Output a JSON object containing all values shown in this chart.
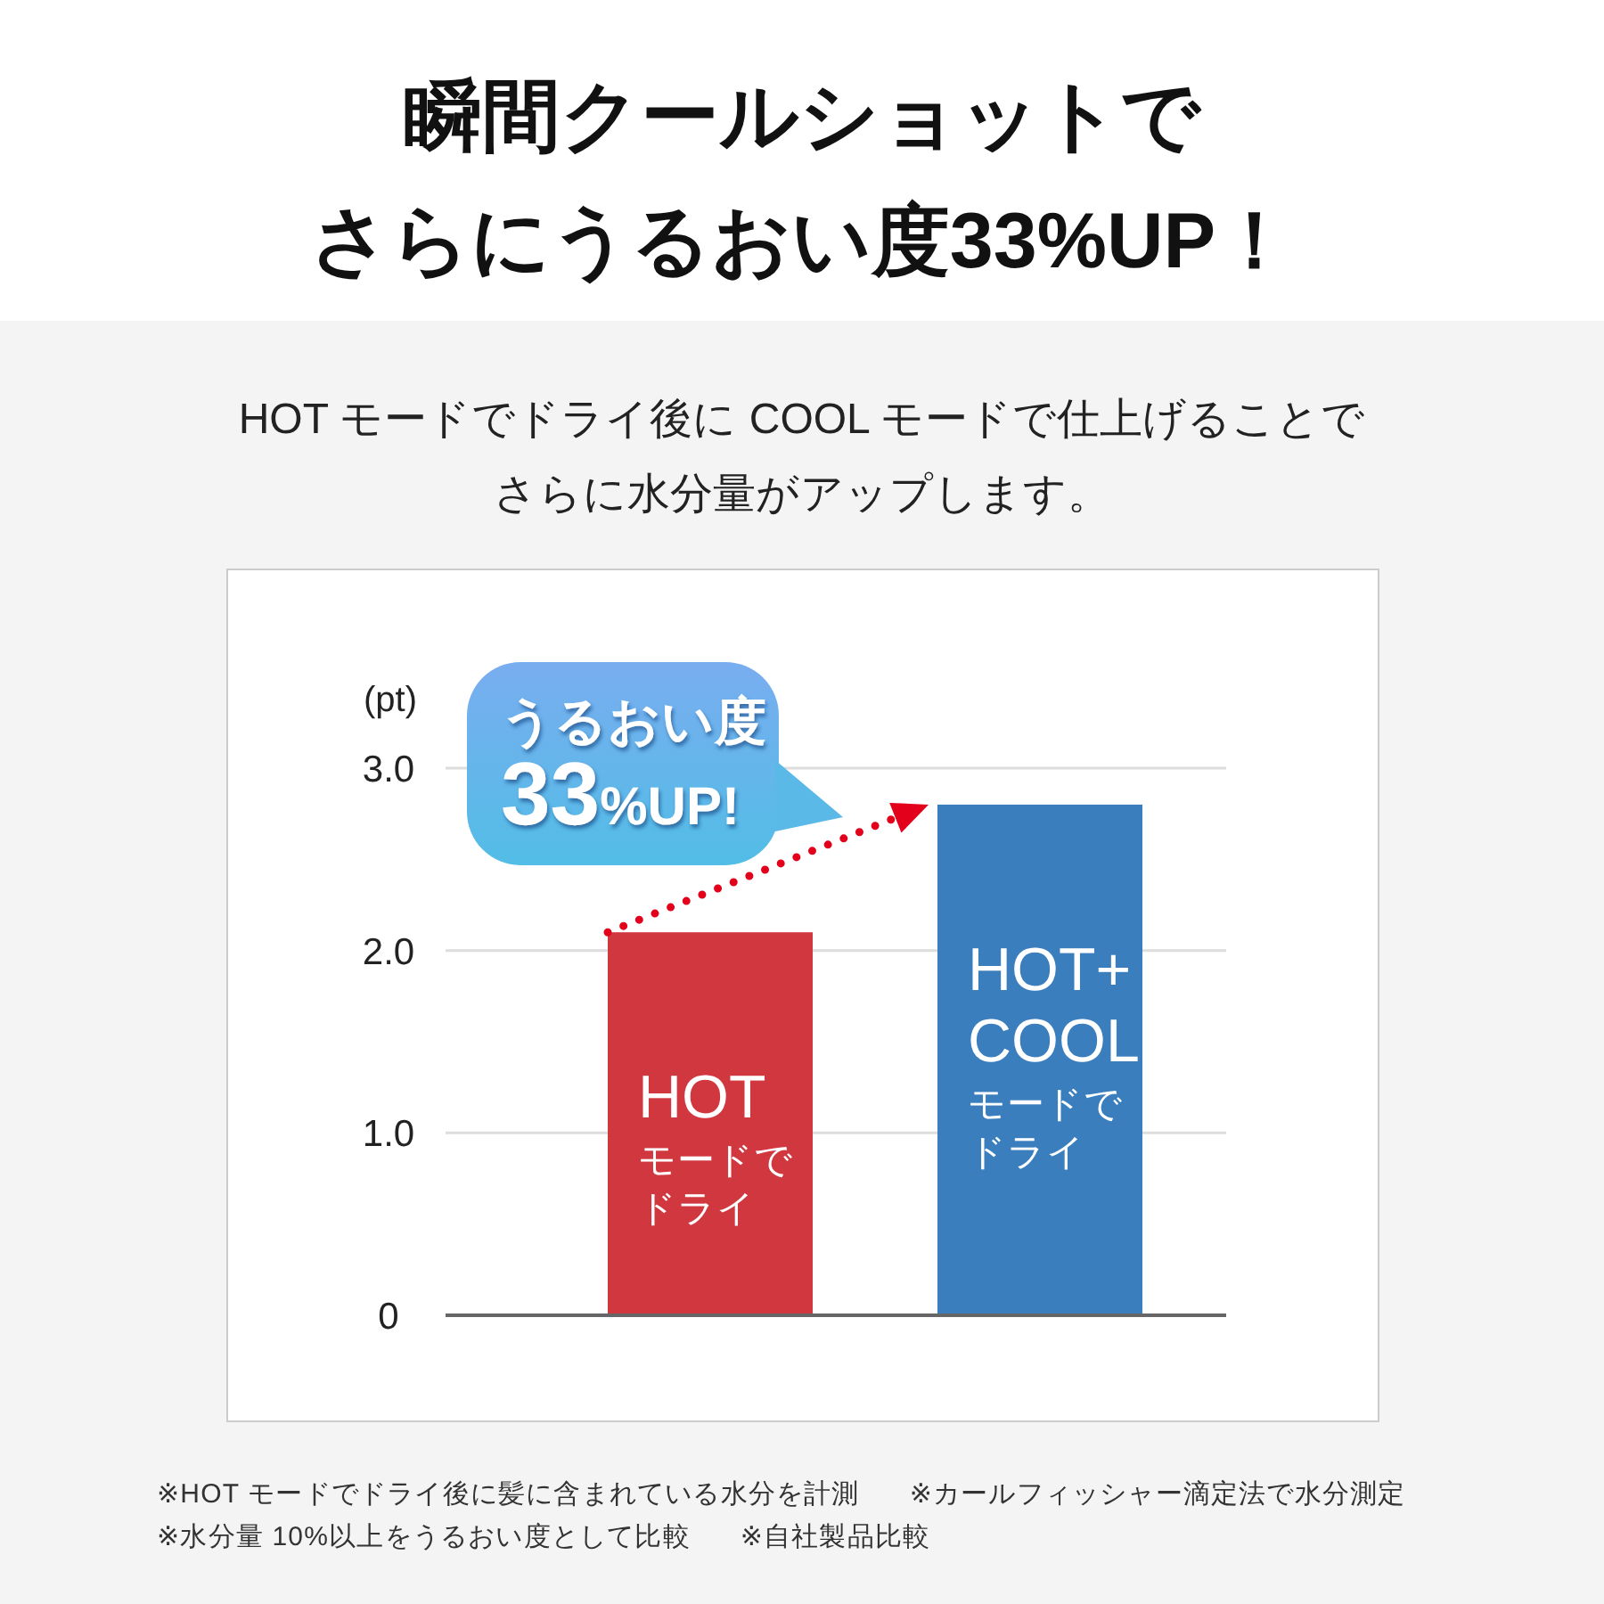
{
  "chart_data": {
    "type": "bar",
    "title": "瞬間クールショットでさらにうるおい度33%UP！",
    "subtitle": "HOT モードでドライ後に COOL モードで仕上げることでさらに水分量がアップします。",
    "ylabel": "(pt)",
    "categories": [
      "HOT モードでドライ",
      "HOT+ COOL モードでドライ"
    ],
    "values": [
      2.1,
      2.8
    ],
    "colors": [
      "#d1373f",
      "#3b7ebe"
    ],
    "ylim": [
      0,
      3
    ],
    "yticks": [
      0,
      {
        "value": 1,
        "label": "1.0"
      },
      {
        "value": 2,
        "label": "2.0"
      },
      {
        "value": 3,
        "label": "3.0"
      }
    ],
    "grid": "y",
    "annotations": [
      {
        "text": "うるおい度33%UP!",
        "x": "HOT+ COOL モードでドライ",
        "y": 2.8
      },
      "※HOT モードでドライ後に髪に含まれている水分を計測",
      "※カールフィッシャー滴定法で水分測定",
      "※水分量 10%以上をうるおい度として比較",
      "※自社製品比較"
    ]
  }
}
